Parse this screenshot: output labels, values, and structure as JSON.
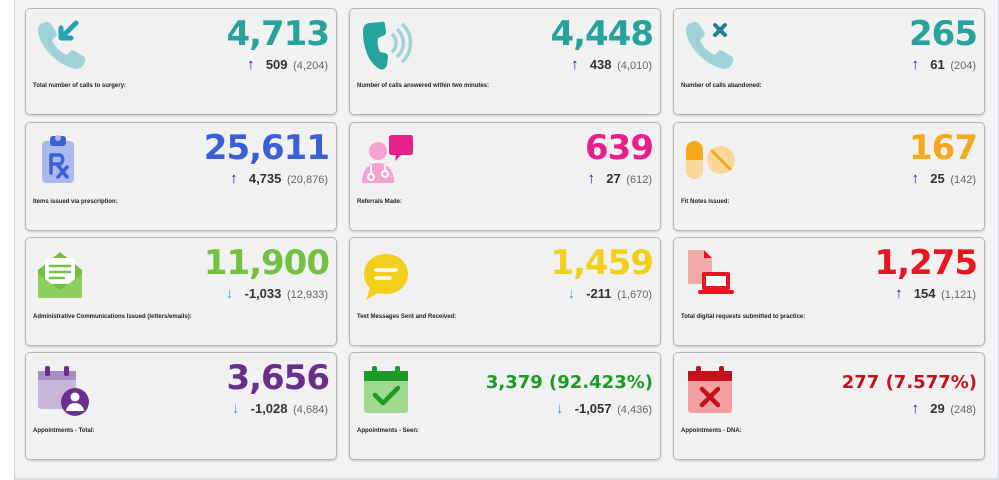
{
  "cards": [
    {
      "id": "calls-total",
      "value": "4,713",
      "value_color": "#26a39d",
      "direction": "up",
      "delta": "509",
      "prev": "(4,204)",
      "label": "Total number of calls to surgery:",
      "icon": "phone-incoming-icon"
    },
    {
      "id": "calls-answered",
      "value": "4,448",
      "value_color": "#26a39d",
      "direction": "up",
      "delta": "438",
      "prev": "(4,010)",
      "label": "Number of calls answered within two minutes:",
      "icon": "phone-ringing-icon"
    },
    {
      "id": "calls-abandoned",
      "value": "265",
      "value_color": "#26a39d",
      "direction": "up",
      "delta": "61",
      "prev": "(204)",
      "label": "Number of calls abandoned:",
      "icon": "phone-missed-icon"
    },
    {
      "id": "prescriptions",
      "value": "25,611",
      "value_color": "#3a5fd6",
      "direction": "up",
      "delta": "4,735",
      "prev": "(20,876)",
      "label": "Items issued via prescription:",
      "icon": "prescription-clipboard-icon"
    },
    {
      "id": "referrals",
      "value": "639",
      "value_color": "#e81f8c",
      "direction": "up",
      "delta": "27",
      "prev": "(612)",
      "label": "Referrals Made:",
      "icon": "doctor-referral-icon"
    },
    {
      "id": "fit-notes",
      "value": "167",
      "value_color": "#f5a81c",
      "direction": "up",
      "delta": "25",
      "prev": "(142)",
      "label": "Fit Notes Issued:",
      "icon": "pills-icon"
    },
    {
      "id": "admin-comms",
      "value": "11,900",
      "value_color": "#74c043",
      "direction": "down",
      "delta": "-1,033",
      "prev": "(12,933)",
      "label": "Administrative Communications Issued (letters/emails):",
      "icon": "envelope-letter-icon"
    },
    {
      "id": "text-messages",
      "value": "1,459",
      "value_color": "#f2cf1a",
      "direction": "down",
      "delta": "-211",
      "prev": "(1,670)",
      "label": "Text Messages Sent and Received:",
      "icon": "chat-bubble-icon"
    },
    {
      "id": "digital-requests",
      "value": "1,275",
      "value_color": "#e8161f",
      "direction": "up",
      "delta": "154",
      "prev": "(1,121)",
      "label": "Total digital requests submitted to practice:",
      "icon": "laptop-document-icon"
    },
    {
      "id": "appointments-total",
      "value": "3,656",
      "value_color": "#6a2f8e",
      "direction": "down",
      "delta": "-1,028",
      "prev": "(4,684)",
      "label": "Appointments - Total:",
      "icon": "calendar-person-icon"
    },
    {
      "id": "appointments-seen",
      "value": "3,379 (92.423%)",
      "value_color": "#1c9a26",
      "direction": "down",
      "delta": "-1,057",
      "prev": "(4,436)",
      "label": "Appointments - Seen:",
      "icon": "calendar-check-icon"
    },
    {
      "id": "appointments-dna",
      "value": "277 (7.577%)",
      "value_color": "#c4121c",
      "direction": "up",
      "delta": "29",
      "prev": "(248)",
      "label": "Appointments - DNA:",
      "icon": "calendar-cross-icon"
    }
  ],
  "arrows": {
    "up": "↑",
    "down": "↓"
  }
}
